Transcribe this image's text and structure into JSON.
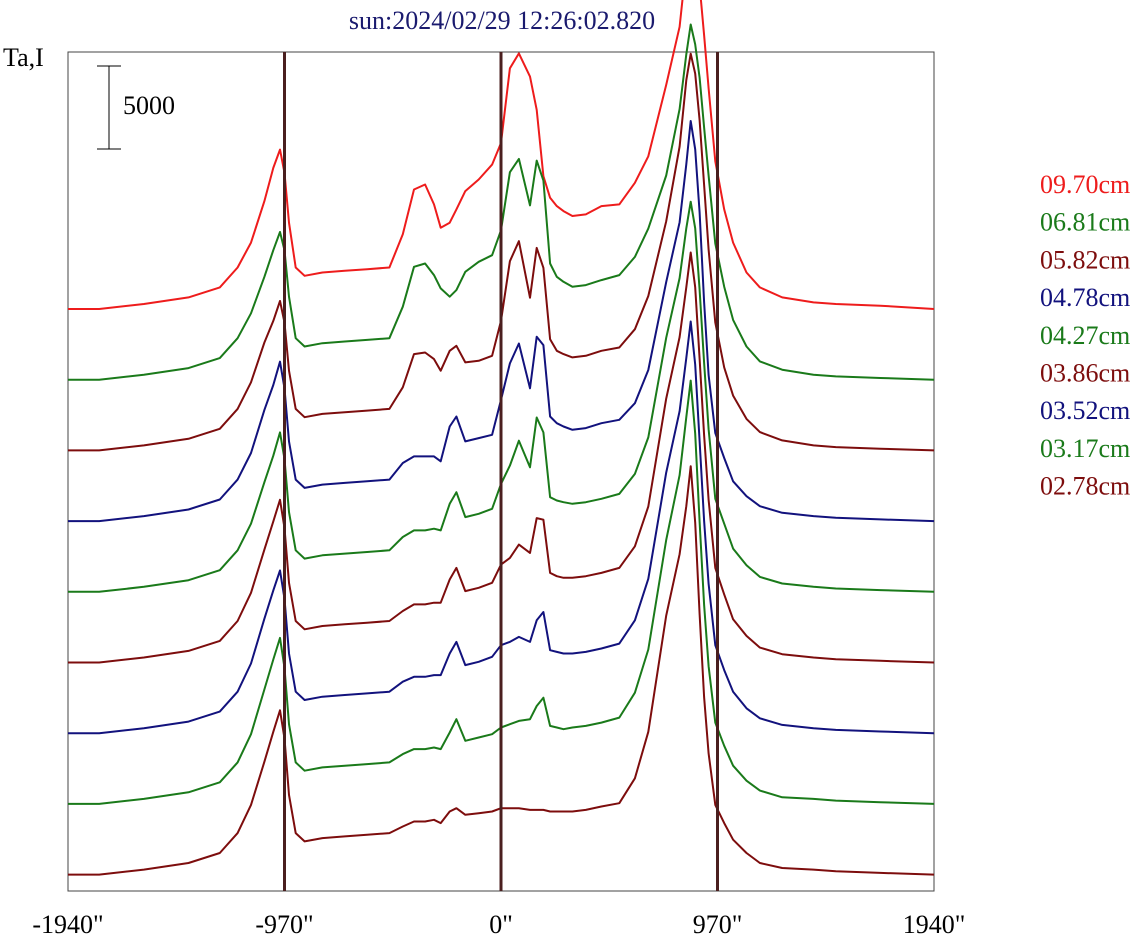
{
  "chart_data": {
    "type": "line",
    "title": "sun:2024/02/29 12:26:02.820",
    "ylabel": "Ta,I",
    "scale_bar_label": "5000",
    "scale_bar_value": 5000,
    "xlim": [
      -1940,
      1940
    ],
    "x_ticks": [
      {
        "value": -1940,
        "label": "-1940\""
      },
      {
        "value": -970,
        "label": "-970\""
      },
      {
        "value": 0,
        "label": "0\""
      },
      {
        "value": 970,
        "label": "970\""
      },
      {
        "value": 1940,
        "label": "1940\""
      }
    ],
    "vertical_lines": [
      -970,
      0,
      970
    ],
    "x": [
      -1940,
      -1800,
      -1600,
      -1400,
      -1260,
      -1180,
      -1120,
      -1060,
      -1020,
      -990,
      -970,
      -950,
      -920,
      -880,
      -800,
      -700,
      -600,
      -500,
      -440,
      -390,
      -340,
      -300,
      -270,
      -230,
      -200,
      -160,
      -100,
      -40,
      0,
      40,
      80,
      130,
      160,
      190,
      220,
      250,
      280,
      320,
      380,
      450,
      530,
      600,
      660,
      740,
      800,
      830,
      850,
      870,
      890,
      910,
      930,
      960,
      1000,
      1040,
      1100,
      1160,
      1260,
      1400,
      1500,
      1700,
      1940
    ],
    "series": [
      {
        "name": "09.70cm",
        "color": "#ee1c1c",
        "values": [
          0,
          0,
          300,
          700,
          1300,
          2500,
          4000,
          6500,
          8500,
          9600,
          8200,
          5200,
          2500,
          2000,
          2200,
          2300,
          2400,
          2500,
          4500,
          7200,
          7500,
          6300,
          4900,
          5200,
          6000,
          7100,
          7800,
          8700,
          10000,
          14500,
          15400,
          14000,
          12000,
          8000,
          6700,
          6200,
          5900,
          5600,
          5700,
          6200,
          6300,
          7600,
          9200,
          13500,
          17000,
          20800,
          22300,
          21200,
          19500,
          16500,
          13300,
          8900,
          6000,
          4000,
          2200,
          1300,
          700,
          400,
          300,
          200,
          0
        ]
      },
      {
        "name": "06.81cm",
        "color": "#1a7a1a",
        "values": [
          0,
          0,
          300,
          700,
          1300,
          2500,
          4000,
          6200,
          7800,
          8900,
          7800,
          5000,
          2500,
          2000,
          2200,
          2300,
          2400,
          2500,
          4400,
          6800,
          7000,
          6300,
          5500,
          5000,
          5400,
          6500,
          7100,
          7500,
          9000,
          12500,
          13300,
          10500,
          13200,
          12000,
          7000,
          6200,
          5900,
          5600,
          5700,
          6000,
          6300,
          7400,
          9100,
          12300,
          16300,
          19600,
          21400,
          20200,
          18200,
          15200,
          12300,
          8200,
          5600,
          3600,
          2000,
          1100,
          600,
          300,
          200,
          100,
          0
        ]
      },
      {
        "name": "05.82cm",
        "color": "#7d0d0d",
        "values": [
          0,
          0,
          300,
          700,
          1300,
          2500,
          4100,
          6500,
          7800,
          9000,
          7700,
          4800,
          2500,
          2000,
          2200,
          2300,
          2400,
          2500,
          3800,
          5800,
          5900,
          5500,
          4800,
          6000,
          6300,
          5300,
          5400,
          5700,
          7800,
          11400,
          12600,
          9200,
          12200,
          11000,
          6700,
          6000,
          5800,
          5600,
          5700,
          6000,
          6200,
          7300,
          9300,
          13800,
          18300,
          22300,
          23900,
          22700,
          19900,
          16000,
          12100,
          7700,
          5000,
          3300,
          1900,
          1100,
          600,
          300,
          200,
          100,
          0
        ]
      },
      {
        "name": "04.78cm",
        "color": "#12127d",
        "values": [
          0,
          0,
          300,
          700,
          1300,
          2500,
          4100,
          6700,
          8200,
          9600,
          8000,
          4800,
          2500,
          2000,
          2200,
          2300,
          2400,
          2500,
          3500,
          3900,
          3900,
          3900,
          3600,
          5700,
          6300,
          4800,
          5000,
          5200,
          7300,
          9500,
          10700,
          8000,
          11100,
          10600,
          6300,
          5900,
          5700,
          5500,
          5600,
          5900,
          6100,
          7100,
          9100,
          14400,
          18000,
          21500,
          24100,
          22400,
          18600,
          13200,
          8800,
          5300,
          3800,
          2400,
          1500,
          900,
          500,
          300,
          200,
          100,
          0
        ]
      },
      {
        "name": "04.27cm",
        "color": "#1a7a1a",
        "values": [
          0,
          0,
          300,
          700,
          1300,
          2500,
          4100,
          6600,
          8200,
          9600,
          8000,
          4800,
          2500,
          2000,
          2200,
          2300,
          2400,
          2500,
          3300,
          3700,
          3700,
          3800,
          3700,
          5300,
          6000,
          4500,
          4700,
          5000,
          6500,
          7600,
          9100,
          7500,
          10500,
          9600,
          5700,
          5500,
          5400,
          5300,
          5400,
          5600,
          5900,
          7100,
          9300,
          15300,
          18900,
          21900,
          23500,
          21900,
          18200,
          13800,
          9800,
          5600,
          4100,
          2600,
          1600,
          900,
          500,
          300,
          200,
          100,
          0
        ]
      },
      {
        "name": "03.86cm",
        "color": "#7d0d0d",
        "values": [
          0,
          0,
          300,
          700,
          1300,
          2500,
          4200,
          6800,
          8500,
          9800,
          8100,
          4800,
          2500,
          2000,
          2200,
          2300,
          2400,
          2500,
          3100,
          3500,
          3500,
          3600,
          3600,
          5000,
          5700,
          4300,
          4500,
          4800,
          5900,
          6300,
          7100,
          6600,
          8700,
          8600,
          5400,
          5200,
          5100,
          5100,
          5200,
          5400,
          5700,
          7000,
          9400,
          15900,
          19600,
          22600,
          24700,
          22600,
          18300,
          13700,
          9800,
          5700,
          4100,
          2600,
          1600,
          900,
          500,
          300,
          200,
          100,
          0
        ]
      },
      {
        "name": "03.52cm",
        "color": "#12127d",
        "values": [
          0,
          0,
          300,
          700,
          1300,
          2500,
          4200,
          6900,
          8600,
          9800,
          8100,
          4800,
          2500,
          2000,
          2200,
          2300,
          2400,
          2500,
          3100,
          3400,
          3400,
          3500,
          3500,
          4800,
          5500,
          4100,
          4300,
          4600,
          5300,
          5500,
          5800,
          5500,
          6800,
          7300,
          5000,
          4900,
          4800,
          4800,
          4900,
          5100,
          5400,
          6800,
          9300,
          15700,
          19400,
          22600,
          24800,
          22200,
          17600,
          12800,
          9000,
          5300,
          3800,
          2500,
          1500,
          900,
          500,
          300,
          200,
          100,
          0
        ]
      },
      {
        "name": "03.17cm",
        "color": "#1a7a1a",
        "values": [
          0,
          0,
          300,
          700,
          1300,
          2500,
          4200,
          6900,
          8700,
          10000,
          8200,
          4800,
          2500,
          2000,
          2200,
          2300,
          2400,
          2500,
          3000,
          3300,
          3300,
          3400,
          3300,
          4300,
          5100,
          3800,
          4000,
          4200,
          4600,
          4800,
          5000,
          5100,
          5900,
          6400,
          4700,
          4600,
          4500,
          4600,
          4700,
          4900,
          5200,
          6700,
          9300,
          15900,
          19800,
          23300,
          25500,
          22300,
          17000,
          12000,
          8300,
          4900,
          3500,
          2300,
          1400,
          800,
          400,
          300,
          200,
          100,
          0
        ]
      },
      {
        "name": "02.78cm",
        "color": "#7d0d0d",
        "values": [
          0,
          0,
          300,
          700,
          1300,
          2500,
          4200,
          6800,
          8600,
          9900,
          8200,
          4800,
          2500,
          2000,
          2200,
          2300,
          2400,
          2500,
          2900,
          3200,
          3200,
          3300,
          3100,
          3800,
          4000,
          3600,
          3700,
          3800,
          4000,
          4000,
          4000,
          3900,
          3900,
          3900,
          3800,
          3800,
          3800,
          3800,
          3900,
          4100,
          4300,
          5800,
          8600,
          15600,
          19300,
          22200,
          24600,
          21200,
          15700,
          10700,
          7300,
          4200,
          3100,
          2100,
          1300,
          700,
          400,
          300,
          200,
          100,
          0
        ]
      }
    ]
  }
}
